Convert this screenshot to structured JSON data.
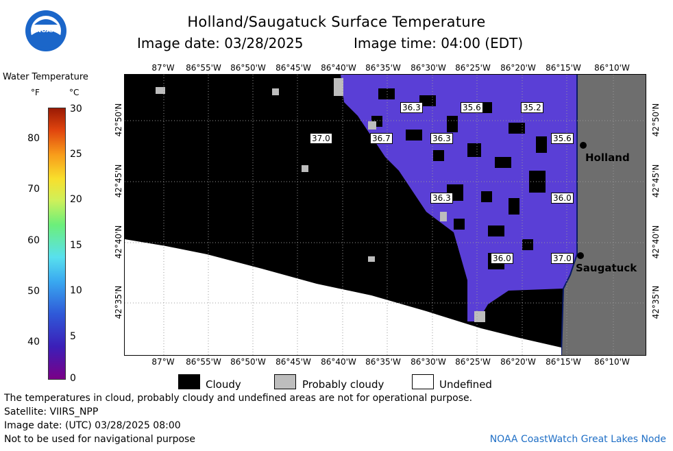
{
  "header": {
    "title": "Holland/Saugatuck Surface Temperature",
    "image_date_label": "Image date: 03/28/2025",
    "image_time_label": "Image time: 04:00 (EDT)"
  },
  "logo": {
    "text": "NOAA"
  },
  "colorbar": {
    "title": "Water Temperature",
    "unit_f": "°F",
    "unit_c": "°C",
    "ticks_f": [
      "80",
      "70",
      "60",
      "50",
      "40"
    ],
    "ticks_c": [
      "30",
      "25",
      "20",
      "15",
      "10",
      "5",
      "0"
    ]
  },
  "map": {
    "lon_labels": [
      "87°W",
      "86°55'W",
      "86°50'W",
      "86°45'W",
      "86°40'W",
      "86°35'W",
      "86°30'W",
      "86°25'W",
      "86°20'W",
      "86°15'W",
      "86°10'W"
    ],
    "lat_labels": [
      "42°50'N",
      "42°45'N",
      "42°40'N",
      "42°35'N"
    ],
    "cities": [
      {
        "name": "Holland"
      },
      {
        "name": "Saugatuck"
      }
    ],
    "temperatures": [
      "36.3",
      "35.6",
      "35.2",
      "37.0",
      "36.7",
      "36.3",
      "35.6",
      "36.3",
      "36.0",
      "36.0",
      "37.0"
    ],
    "colors": {
      "cloudy": "#000000",
      "probably_cloudy": "#bdbdbd",
      "undefined": "#ffffff",
      "land": "#6e6e6e",
      "water": "#5a3fd6"
    }
  },
  "legend": {
    "cloudy": "Cloudy",
    "probably_cloudy": "Probably cloudy",
    "undefined": "Undefined"
  },
  "footer": {
    "disclaimer": "The temperatures in cloud, probably cloudy and undefined areas are not for operational purpose.",
    "satellite": "Satellite: VIIRS_NPP",
    "utc_date": "Image date: (UTC) 03/28/2025  08:00",
    "nav_warning": "Not to be used for navigational purpose",
    "node": "NOAA CoastWatch Great Lakes Node"
  }
}
